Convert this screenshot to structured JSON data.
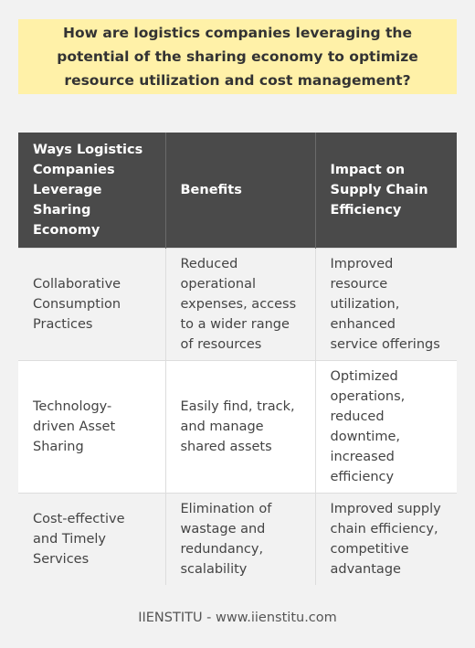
{
  "title": "How are logistics companies leveraging the potential of the sharing economy to optimize resource utilization and cost management?",
  "table": {
    "headers": [
      "Ways Logistics Companies Leverage Sharing Economy",
      "Benefits",
      "Impact on Supply Chain Efficiency"
    ],
    "rows": [
      {
        "way": "Collaborative Consumption Practices",
        "benefits": "Reduced operational expenses, access to a wider range of resources",
        "impact": "Improved resource utilization, enhanced service offerings"
      },
      {
        "way": "Technology-driven Asset Sharing",
        "benefits": "Easily find, track, and manage shared assets",
        "impact": "Optimized operations, reduced downtime, increased efficiency"
      },
      {
        "way": "Cost-effective and Timely Services",
        "benefits": "Elimination of wastage and redundancy, scalability",
        "impact": "Improved supply chain efficiency, competitive advantage"
      }
    ]
  },
  "footer": "IIENSTITU - www.iienstitu.com"
}
